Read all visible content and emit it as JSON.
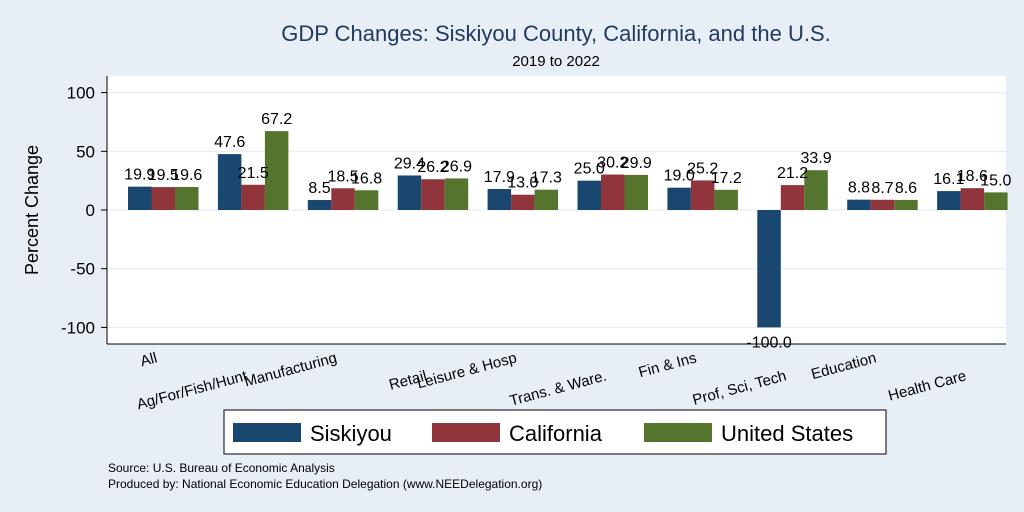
{
  "chart_data": {
    "type": "bar",
    "title": "GDP Changes: Siskiyou County, California, and the U.S.",
    "subtitle": "2019 to 2022",
    "ylabel": "Percent Change",
    "xlabel": "",
    "ylim": [
      -110,
      115
    ],
    "yticks": [
      100,
      50,
      0,
      -50,
      -100
    ],
    "ytick_labels": [
      "100",
      "50",
      "0",
      "-50",
      "-100"
    ],
    "grid": true,
    "legend_position": "bottom",
    "categories": [
      "All",
      "Ag/For/Fish/Hunt",
      "Manufacturing",
      "Retail",
      "Leisure & Hosp",
      "Trans. & Ware.",
      "Fin & Ins",
      "Prof, Sci, Tech",
      "Education",
      "Health Care"
    ],
    "series": [
      {
        "name": "Siskiyou",
        "color": "#1a476f",
        "values": [
          19.9,
          47.6,
          8.5,
          29.4,
          17.9,
          25.0,
          19.0,
          -100.0,
          8.8,
          16.1
        ],
        "labels": [
          "19.9",
          "47.6",
          "8.5",
          "29.4",
          "17.9",
          "25.0",
          "19.0",
          "-100.0",
          "8.8",
          "16.1"
        ]
      },
      {
        "name": "California",
        "color": "#90353b",
        "values": [
          19.5,
          21.5,
          18.5,
          26.2,
          13.0,
          30.2,
          25.2,
          21.2,
          8.7,
          18.6
        ],
        "labels": [
          "19.5",
          "21.5",
          "18.5",
          "26.2",
          "13.0",
          "30.2",
          "25.2",
          "21.2",
          "8.7",
          "18.6"
        ]
      },
      {
        "name": "United States",
        "color": "#55752f",
        "values": [
          19.6,
          67.2,
          16.8,
          26.9,
          17.3,
          29.9,
          17.2,
          33.9,
          8.6,
          15.0
        ],
        "labels": [
          "19.6",
          "67.2",
          "16.8",
          "26.9",
          "17.3",
          "29.9",
          "17.2",
          "33.9",
          "8.6",
          "15.0"
        ]
      }
    ]
  },
  "footer": {
    "source": "Source: U.S. Bureau of Economic Analysis",
    "produced_by": "Produced by: National Economic Education Delegation (www.NEEDelegation.org)"
  }
}
